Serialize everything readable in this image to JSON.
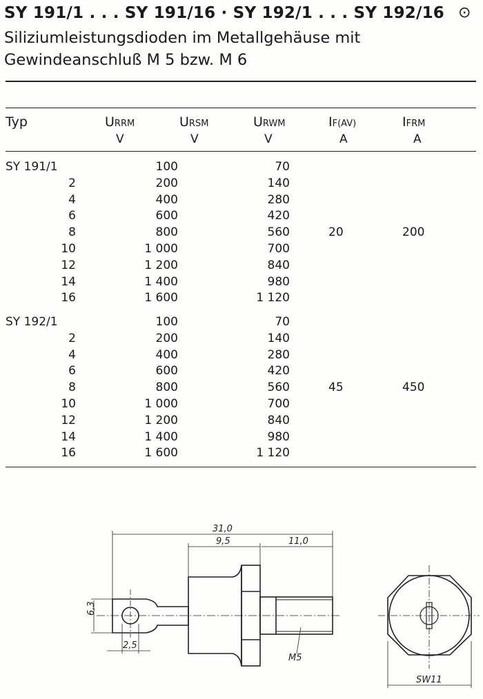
{
  "header": {
    "title": "SY 191/1 . . . SY 191/16 · SY 192/1 . . . SY 192/16",
    "symbol": "⊙",
    "subtitle_line1": "Siliziumleistungsdioden im Metallgehäuse mit",
    "subtitle_line2": "Gewindeanschluß M 5 bzw. M 6"
  },
  "table": {
    "columns": [
      {
        "symbol": "Typ",
        "sub": "",
        "unit": ""
      },
      {
        "symbol": "U",
        "sub": "RRM",
        "unit": "V"
      },
      {
        "symbol": "U",
        "sub": "RSM",
        "unit": "V"
      },
      {
        "symbol": "U",
        "sub": "RWM",
        "unit": "V"
      },
      {
        "symbol": "I",
        "sub": "F(AV)",
        "unit": "A"
      },
      {
        "symbol": "I",
        "sub": "FRM",
        "unit": "A"
      }
    ],
    "groups": [
      {
        "types": [
          "SY 191/1",
          "2",
          "4",
          "6",
          "8",
          "10",
          "12",
          "14",
          "16"
        ],
        "urrm": [
          "100",
          "200",
          "400",
          "600",
          "800",
          "1 000",
          "1 200",
          "1 400",
          "1 600"
        ],
        "urwm": [
          "70",
          "140",
          "280",
          "420",
          "560",
          "700",
          "840",
          "980",
          "1 120"
        ],
        "if_av": "20",
        "ifrm": "200"
      },
      {
        "types": [
          "SY 192/1",
          "2",
          "4",
          "6",
          "8",
          "10",
          "12",
          "14",
          "16"
        ],
        "urrm": [
          "100",
          "200",
          "400",
          "600",
          "800",
          "1 000",
          "1 200",
          "1 400",
          "1 600"
        ],
        "urwm": [
          "70",
          "140",
          "280",
          "420",
          "560",
          "700",
          "840",
          "980",
          "1 120"
        ],
        "if_av": "45",
        "ifrm": "450"
      }
    ]
  },
  "drawing": {
    "dim_total": "31,0",
    "dim_body": "9,5",
    "dim_thread": "11,0",
    "dim_tab_height": "6,3",
    "dim_hole": "2,5",
    "thread_label": "M5",
    "wrench_label": "SW11"
  }
}
